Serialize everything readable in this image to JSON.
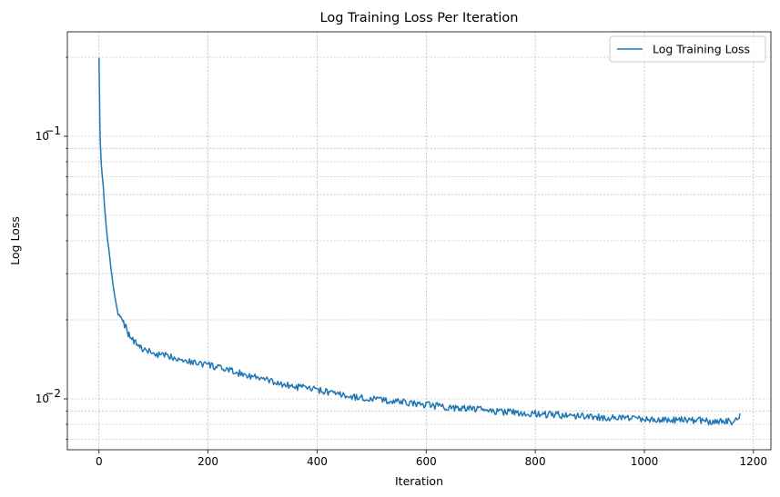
{
  "chart_data": {
    "type": "line",
    "title": "Log Training Loss Per Iteration",
    "xlabel": "Iteration",
    "ylabel": "Log Loss",
    "yscale": "log",
    "xlim": [
      -58,
      1232
    ],
    "ylim": [
      0.0064,
      0.25
    ],
    "x_ticks": [
      0,
      200,
      400,
      600,
      800,
      1000,
      1200
    ],
    "x_tick_labels": [
      "0",
      "200",
      "400",
      "600",
      "800",
      "1000",
      "1200"
    ],
    "y_major_ticks": [
      0.01,
      0.1
    ],
    "y_tick_labels": [
      {
        "base": "10",
        "exp": "−2"
      },
      {
        "base": "10",
        "exp": "−1"
      }
    ],
    "y_minor_ticks": [
      0.007,
      0.008,
      0.009,
      0.02,
      0.03,
      0.04,
      0.05,
      0.06,
      0.07,
      0.08,
      0.09,
      0.2
    ],
    "grid": true,
    "legend": {
      "placement": "top-right",
      "entries": [
        "Log Training Loss"
      ]
    },
    "series": [
      {
        "name": "Log Training Loss",
        "color": "#1f77b4",
        "x": [
          0,
          2,
          4,
          6,
          8,
          10,
          13,
          16,
          20,
          25,
          30,
          35,
          40,
          45,
          50,
          55,
          60,
          65,
          70,
          75,
          80,
          90,
          100,
          110,
          120,
          130,
          140,
          150,
          160,
          170,
          180,
          190,
          200,
          220,
          240,
          260,
          280,
          300,
          320,
          340,
          360,
          380,
          400,
          420,
          440,
          460,
          480,
          500,
          520,
          540,
          560,
          580,
          600,
          620,
          640,
          660,
          680,
          700,
          720,
          740,
          760,
          780,
          800,
          820,
          840,
          860,
          880,
          900,
          920,
          940,
          960,
          980,
          1000,
          1020,
          1040,
          1060,
          1080,
          1100,
          1120,
          1140,
          1160,
          1172,
          1175
        ],
        "values": [
          0.2,
          0.1,
          0.08,
          0.07,
          0.064,
          0.055,
          0.046,
          0.04,
          0.034,
          0.028,
          0.024,
          0.021,
          0.0205,
          0.0195,
          0.0185,
          0.0175,
          0.0168,
          0.0165,
          0.016,
          0.0158,
          0.0155,
          0.0152,
          0.0149,
          0.0147,
          0.0146,
          0.0145,
          0.0144,
          0.0142,
          0.014,
          0.0138,
          0.0137,
          0.0136,
          0.0135,
          0.0131,
          0.0128,
          0.0125,
          0.0122,
          0.0119,
          0.0116,
          0.0113,
          0.0111,
          0.011,
          0.0108,
          0.0106,
          0.0104,
          0.0102,
          0.0101,
          0.01,
          0.0099,
          0.0098,
          0.0097,
          0.0096,
          0.0095,
          0.0094,
          0.0093,
          0.0092,
          0.0092,
          0.0091,
          0.009,
          0.0089,
          0.0089,
          0.0088,
          0.0088,
          0.0087,
          0.0087,
          0.0086,
          0.0086,
          0.0086,
          0.0085,
          0.0085,
          0.0085,
          0.0084,
          0.0084,
          0.0084,
          0.0083,
          0.0083,
          0.0083,
          0.0083,
          0.0082,
          0.0082,
          0.0082,
          0.0083,
          0.0088
        ]
      }
    ]
  }
}
